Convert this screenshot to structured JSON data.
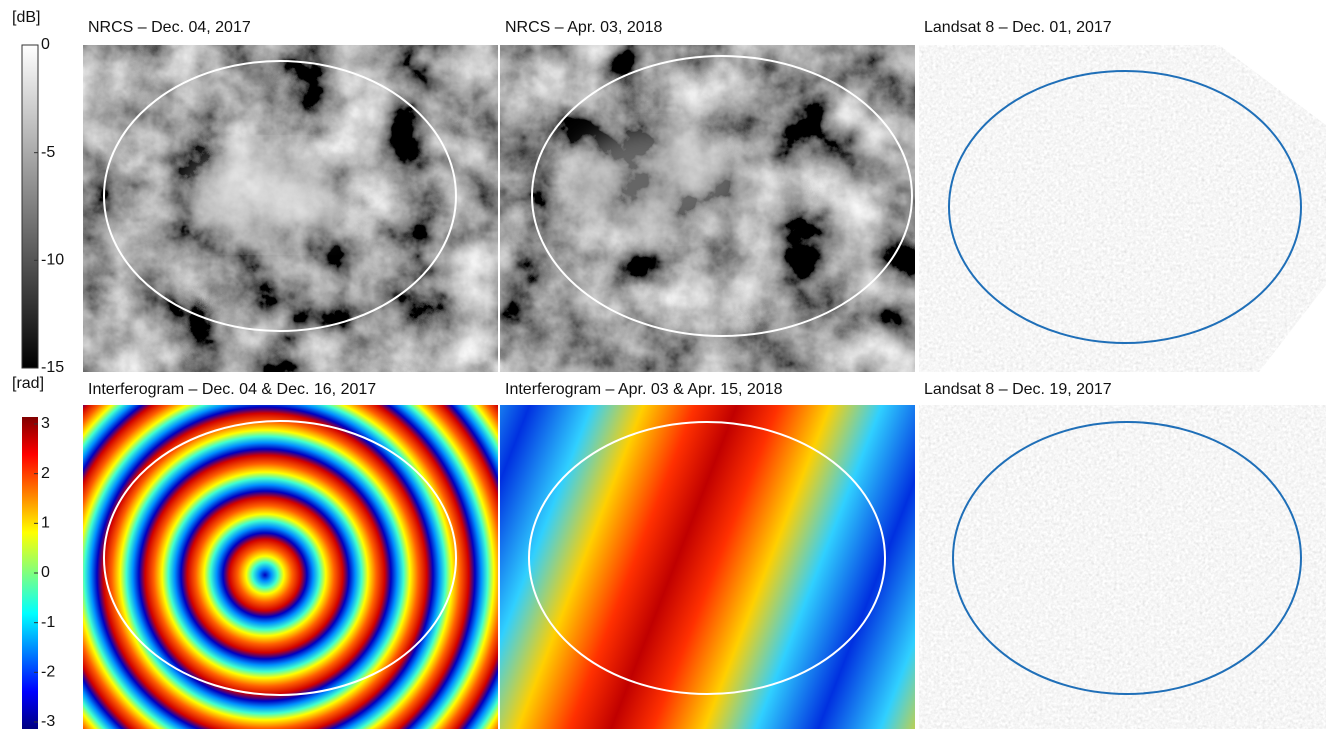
{
  "colorbars": [
    {
      "unit": "[dB]",
      "ticks": [
        0,
        -5,
        -10,
        -15
      ]
    },
    {
      "unit": "[rad]",
      "ticks": [
        3,
        2,
        1,
        0,
        -1,
        -2,
        -3
      ]
    }
  ],
  "panels": [
    {
      "title": "NRCS – Dec. 04, 2017"
    },
    {
      "title": "NRCS – Apr. 03, 2018"
    },
    {
      "title": "Landsat 8 – Dec. 01, 2017"
    },
    {
      "title": "Interferogram – Dec. 04 & Dec. 16, 2017"
    },
    {
      "title": "Interferogram – Apr. 03 & Apr. 15, 2018"
    },
    {
      "title": "Landsat 8 – Dec. 19, 2017"
    }
  ]
}
